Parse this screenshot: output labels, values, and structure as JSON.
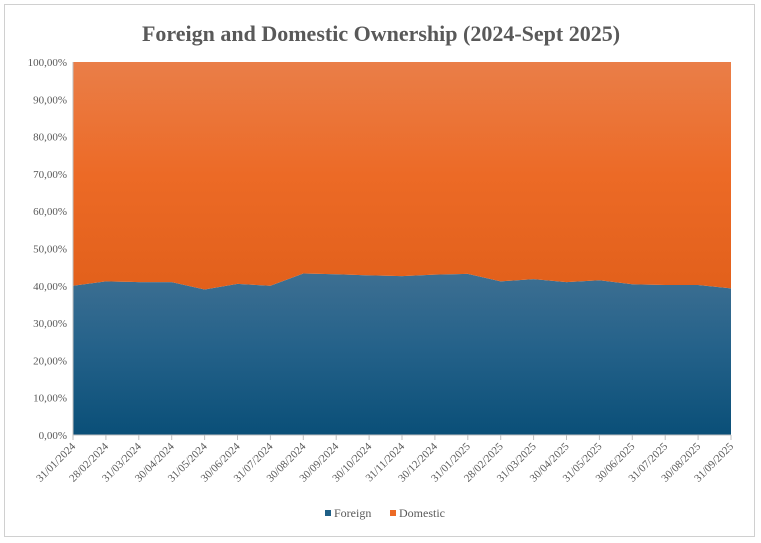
{
  "chart_data": {
    "type": "area",
    "stacked": true,
    "percent_stacked": true,
    "title": "Foreign and Domestic Ownership (2024-Sept 2025)",
    "xlabel": "",
    "ylabel": "",
    "ylim": [
      0,
      1
    ],
    "y_tick_labels": [
      "0,00%",
      "10,00%",
      "20,00%",
      "30,00%",
      "40,00%",
      "50,00%",
      "60,00%",
      "70,00%",
      "80,00%",
      "90,00%",
      "100,00%"
    ],
    "categories": [
      "31/01/2024",
      "28/02/2024",
      "31/03/2024",
      "30/04/2024",
      "31/05/2024",
      "30/06/2024",
      "31/07/2024",
      "30/08/2024",
      "30/09/2024",
      "30/10/2024",
      "31/11/2024",
      "30/12/2024",
      "31/01/2025",
      "28/02/2025",
      "31/03/2025",
      "30/04/2025",
      "31/05/2025",
      "30/06/2025",
      "31/07/2025",
      "30/08/2025",
      "31/09/2025"
    ],
    "series": [
      {
        "name": "Foreign",
        "color": "#1f5f86",
        "values": [
          0.4,
          0.412,
          0.41,
          0.41,
          0.39,
          0.405,
          0.4,
          0.433,
          0.431,
          0.428,
          0.426,
          0.43,
          0.432,
          0.412,
          0.418,
          0.41,
          0.415,
          0.404,
          0.402,
          0.402,
          0.393
        ]
      },
      {
        "name": "Domestic",
        "color": "#ec6a26",
        "values": [
          0.6,
          0.588,
          0.59,
          0.59,
          0.61,
          0.595,
          0.6,
          0.567,
          0.569,
          0.572,
          0.574,
          0.57,
          0.568,
          0.588,
          0.582,
          0.59,
          0.585,
          0.596,
          0.598,
          0.598,
          0.607
        ]
      }
    ],
    "grid": false,
    "legend_position": "bottom"
  }
}
